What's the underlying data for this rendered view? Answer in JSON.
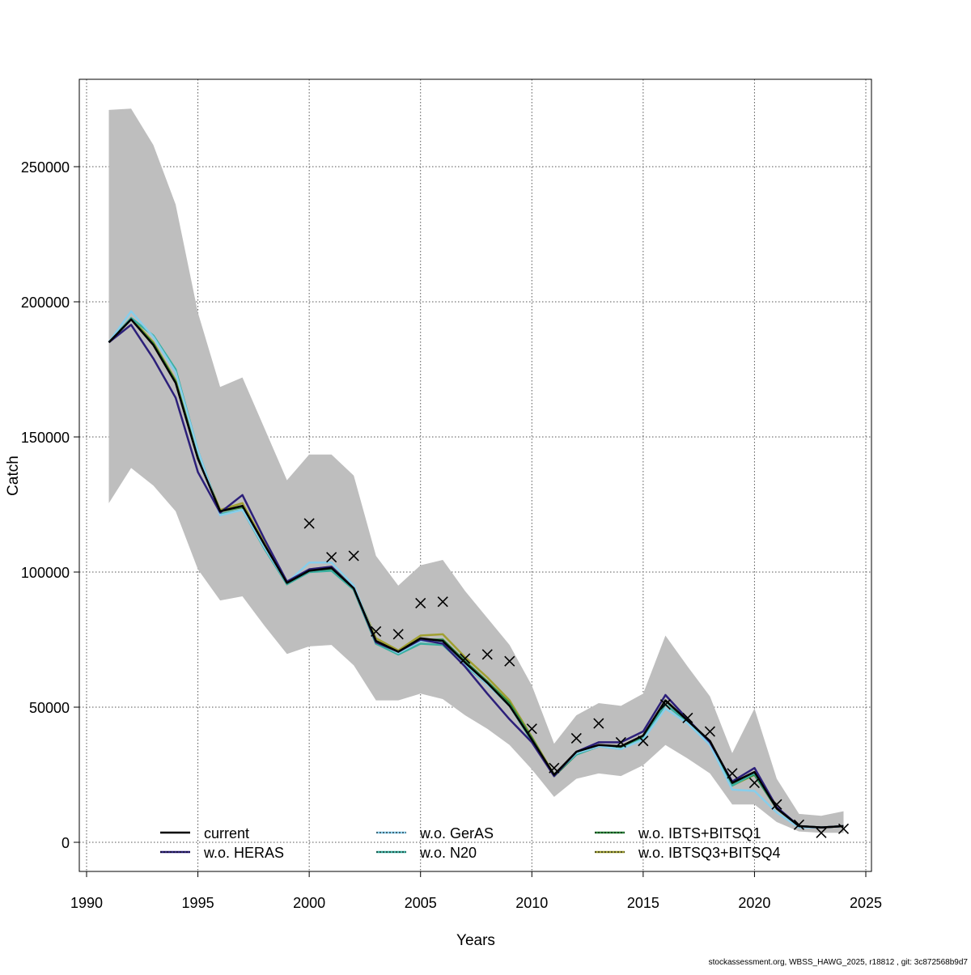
{
  "chart_data": {
    "type": "line",
    "title": "",
    "xlabel": "Years",
    "ylabel": "Catch",
    "xlim": [
      1990,
      2025
    ],
    "ylim": [
      0,
      275000
    ],
    "x_ticks": [
      1990,
      1995,
      2000,
      2005,
      2010,
      2015,
      2020,
      2025
    ],
    "y_ticks": [
      0,
      50000,
      100000,
      150000,
      200000,
      250000
    ],
    "grid": true,
    "legend_position": "bottom",
    "colors": {
      "band": "#bebebe"
    },
    "x": [
      1991,
      1992,
      1993,
      1994,
      1995,
      1996,
      1997,
      1998,
      1999,
      2000,
      2001,
      2002,
      2003,
      2004,
      2005,
      2006,
      2007,
      2008,
      2009,
      2010,
      2011,
      2012,
      2013,
      2014,
      2015,
      2016,
      2017,
      2018,
      2019,
      2020,
      2021,
      2022,
      2023,
      2024
    ],
    "band_upper": [
      271000,
      271500,
      258000,
      236000,
      196000,
      168500,
      172000,
      153000,
      134000,
      143500,
      143500,
      135700,
      106000,
      95000,
      102500,
      104500,
      93000,
      83000,
      73000,
      58000,
      36500,
      47000,
      51500,
      50500,
      55000,
      76500,
      65000,
      54000,
      33000,
      49500,
      23500,
      10500,
      9800,
      11500
    ],
    "band_lower": [
      125500,
      138500,
      132000,
      122500,
      101000,
      89500,
      91000,
      80000,
      69700,
      72500,
      73000,
      65500,
      52500,
      52500,
      55000,
      53000,
      47000,
      42000,
      36000,
      27000,
      16800,
      23500,
      25500,
      24500,
      28500,
      36000,
      31000,
      25500,
      14000,
      14000,
      7500,
      4000,
      3500,
      3500
    ],
    "series": [
      {
        "name": "current",
        "color": "#000000",
        "dotted": false,
        "values": [
          185000,
          193500,
          184000,
          170000,
          142000,
          122500,
          124500,
          110000,
          96000,
          100500,
          101500,
          94000,
          74500,
          70500,
          75500,
          74500,
          66500,
          59000,
          50500,
          38000,
          25000,
          33500,
          36000,
          35500,
          39500,
          52500,
          45000,
          37500,
          22000,
          26000,
          12500,
          6000,
          5500,
          6000
        ]
      },
      {
        "name": "w.o. HERAS",
        "color": "#2c1f7a",
        "dotted": true,
        "values": [
          185000,
          191500,
          179000,
          164500,
          137000,
          122000,
          128500,
          112000,
          96500,
          101000,
          102000,
          94000,
          74000,
          70500,
          75000,
          73500,
          65000,
          55000,
          45500,
          37000,
          24500,
          33500,
          37000,
          37000,
          41000,
          54500,
          45500,
          37000,
          22500,
          27500,
          13000,
          6000,
          5500,
          6000
        ]
      },
      {
        "name": "w.o. GerAS",
        "color": "#87ceeb",
        "dotted": true,
        "values": [
          185000,
          196500,
          187000,
          174000,
          145000,
          121000,
          123000,
          109000,
          96000,
          103500,
          103500,
          95000,
          74500,
          70000,
          74500,
          74000,
          66000,
          58500,
          50500,
          38000,
          25000,
          33000,
          35500,
          34500,
          38000,
          49500,
          44000,
          36000,
          19500,
          19000,
          11000,
          5500,
          5500,
          6000
        ]
      },
      {
        "name": "w.o. N20",
        "color": "#3aafa0",
        "dotted": true,
        "values": [
          185000,
          194000,
          187500,
          175000,
          145000,
          121500,
          123000,
          108500,
          95500,
          100000,
          100500,
          93500,
          73500,
          69500,
          73500,
          73000,
          65500,
          58500,
          50500,
          37500,
          25000,
          32500,
          35500,
          34500,
          38500,
          51000,
          44500,
          36500,
          21000,
          25500,
          12500,
          6000,
          5500,
          6000
        ]
      },
      {
        "name": "w.o. IBTS+BITSQ1",
        "color": "#2e8b3e",
        "dotted": true,
        "values": [
          185000,
          193500,
          184500,
          170500,
          142500,
          122500,
          124000,
          109500,
          95500,
          100500,
          101000,
          93500,
          73500,
          70000,
          75000,
          75000,
          67000,
          59500,
          51500,
          38500,
          24500,
          32500,
          35500,
          35000,
          39000,
          52500,
          45000,
          37000,
          21500,
          25000,
          12500,
          6000,
          5500,
          6000
        ]
      },
      {
        "name": "w.o. IBTSQ3+BITSQ4",
        "color": "#a0a030",
        "dotted": true,
        "values": [
          185000,
          194000,
          185000,
          171000,
          143000,
          123000,
          125500,
          110500,
          96000,
          101000,
          102000,
          94500,
          75500,
          71000,
          76500,
          77000,
          68500,
          61000,
          52500,
          39000,
          25000,
          33000,
          36000,
          35500,
          39500,
          52500,
          45000,
          36500,
          21000,
          25000,
          12500,
          6000,
          5500,
          6000
        ]
      }
    ],
    "observations": {
      "marker": "x",
      "x": [
        2000,
        2001,
        2002,
        2003,
        2004,
        2005,
        2006,
        2007,
        2008,
        2009,
        2010,
        2011,
        2012,
        2013,
        2014,
        2015,
        2016,
        2017,
        2018,
        2019,
        2020,
        2021,
        2022,
        2023,
        2024
      ],
      "values": [
        118000,
        105500,
        106000,
        78000,
        77000,
        88500,
        89000,
        68000,
        69500,
        67000,
        42000,
        27500,
        38500,
        44000,
        37000,
        37500,
        51000,
        46000,
        41000,
        25500,
        22000,
        14000,
        6500,
        3500,
        5000
      ]
    }
  },
  "footer": "stockassessment.org, WBSS_HAWG_2025, r18812 , git: 3c872568b9d7"
}
